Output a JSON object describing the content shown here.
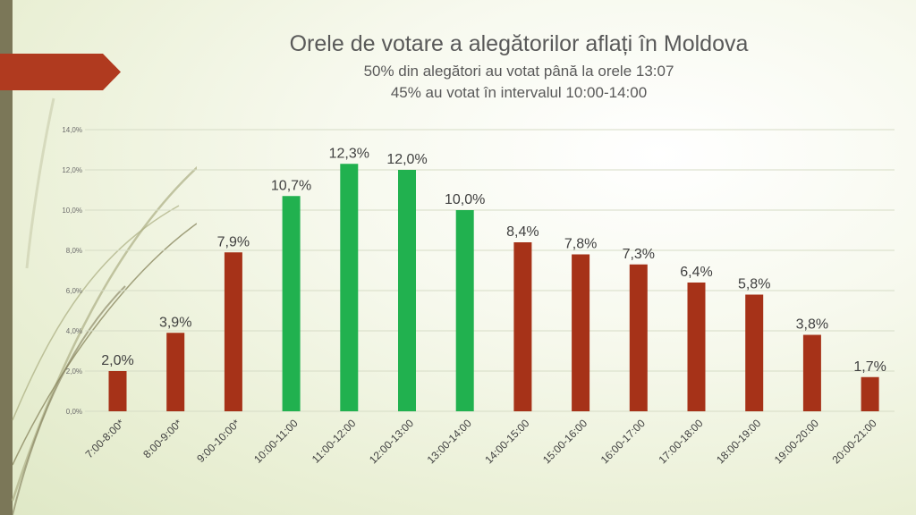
{
  "slide": {
    "title": "Orele de votare a alegătorilor aflați în Moldova",
    "subtitle1": "50% din alegători au votat până la orele 13:07",
    "subtitle2": "45% au votat în intervalul 10:00-14:00"
  },
  "colors": {
    "red": "#a63218",
    "green": "#21b14f",
    "accent_tab": "#b03a1f",
    "sidebar": "#7b7758"
  },
  "chart_data": {
    "type": "bar",
    "title": "Orele de votare a alegătorilor aflați în Moldova",
    "xlabel": "",
    "ylabel": "",
    "ylim": [
      0,
      14
    ],
    "grid": true,
    "y_ticks": [
      "0,0%",
      "2,0%",
      "4,0%",
      "6,0%",
      "8,0%",
      "10,0%",
      "12,0%",
      "14,0%"
    ],
    "categories": [
      "7:00-8:00*",
      "8:00-9:00*",
      "9:00-10:00*",
      "10:00-11:00",
      "11:00-12:00",
      "12:00-13:00",
      "13:00-14:00",
      "14:00-15:00",
      "15:00-16:00",
      "16:00-17:00",
      "17:00-18:00",
      "18:00-19:00",
      "19:00-20:00",
      "20:00-21:00"
    ],
    "values": [
      2.0,
      3.9,
      7.9,
      10.7,
      12.3,
      12.0,
      10.0,
      8.4,
      7.8,
      7.3,
      6.4,
      5.8,
      3.8,
      1.7
    ],
    "data_labels": [
      "2,0%",
      "3,9%",
      "7,9%",
      "10,7%",
      "12,3%",
      "12,0%",
      "10,0%",
      "8,4%",
      "7,8%",
      "7,3%",
      "6,4%",
      "5,8%",
      "3,8%",
      "1,7%"
    ],
    "bar_colors": [
      "red",
      "red",
      "red",
      "green",
      "green",
      "green",
      "green",
      "red",
      "red",
      "red",
      "red",
      "red",
      "red",
      "red"
    ]
  }
}
